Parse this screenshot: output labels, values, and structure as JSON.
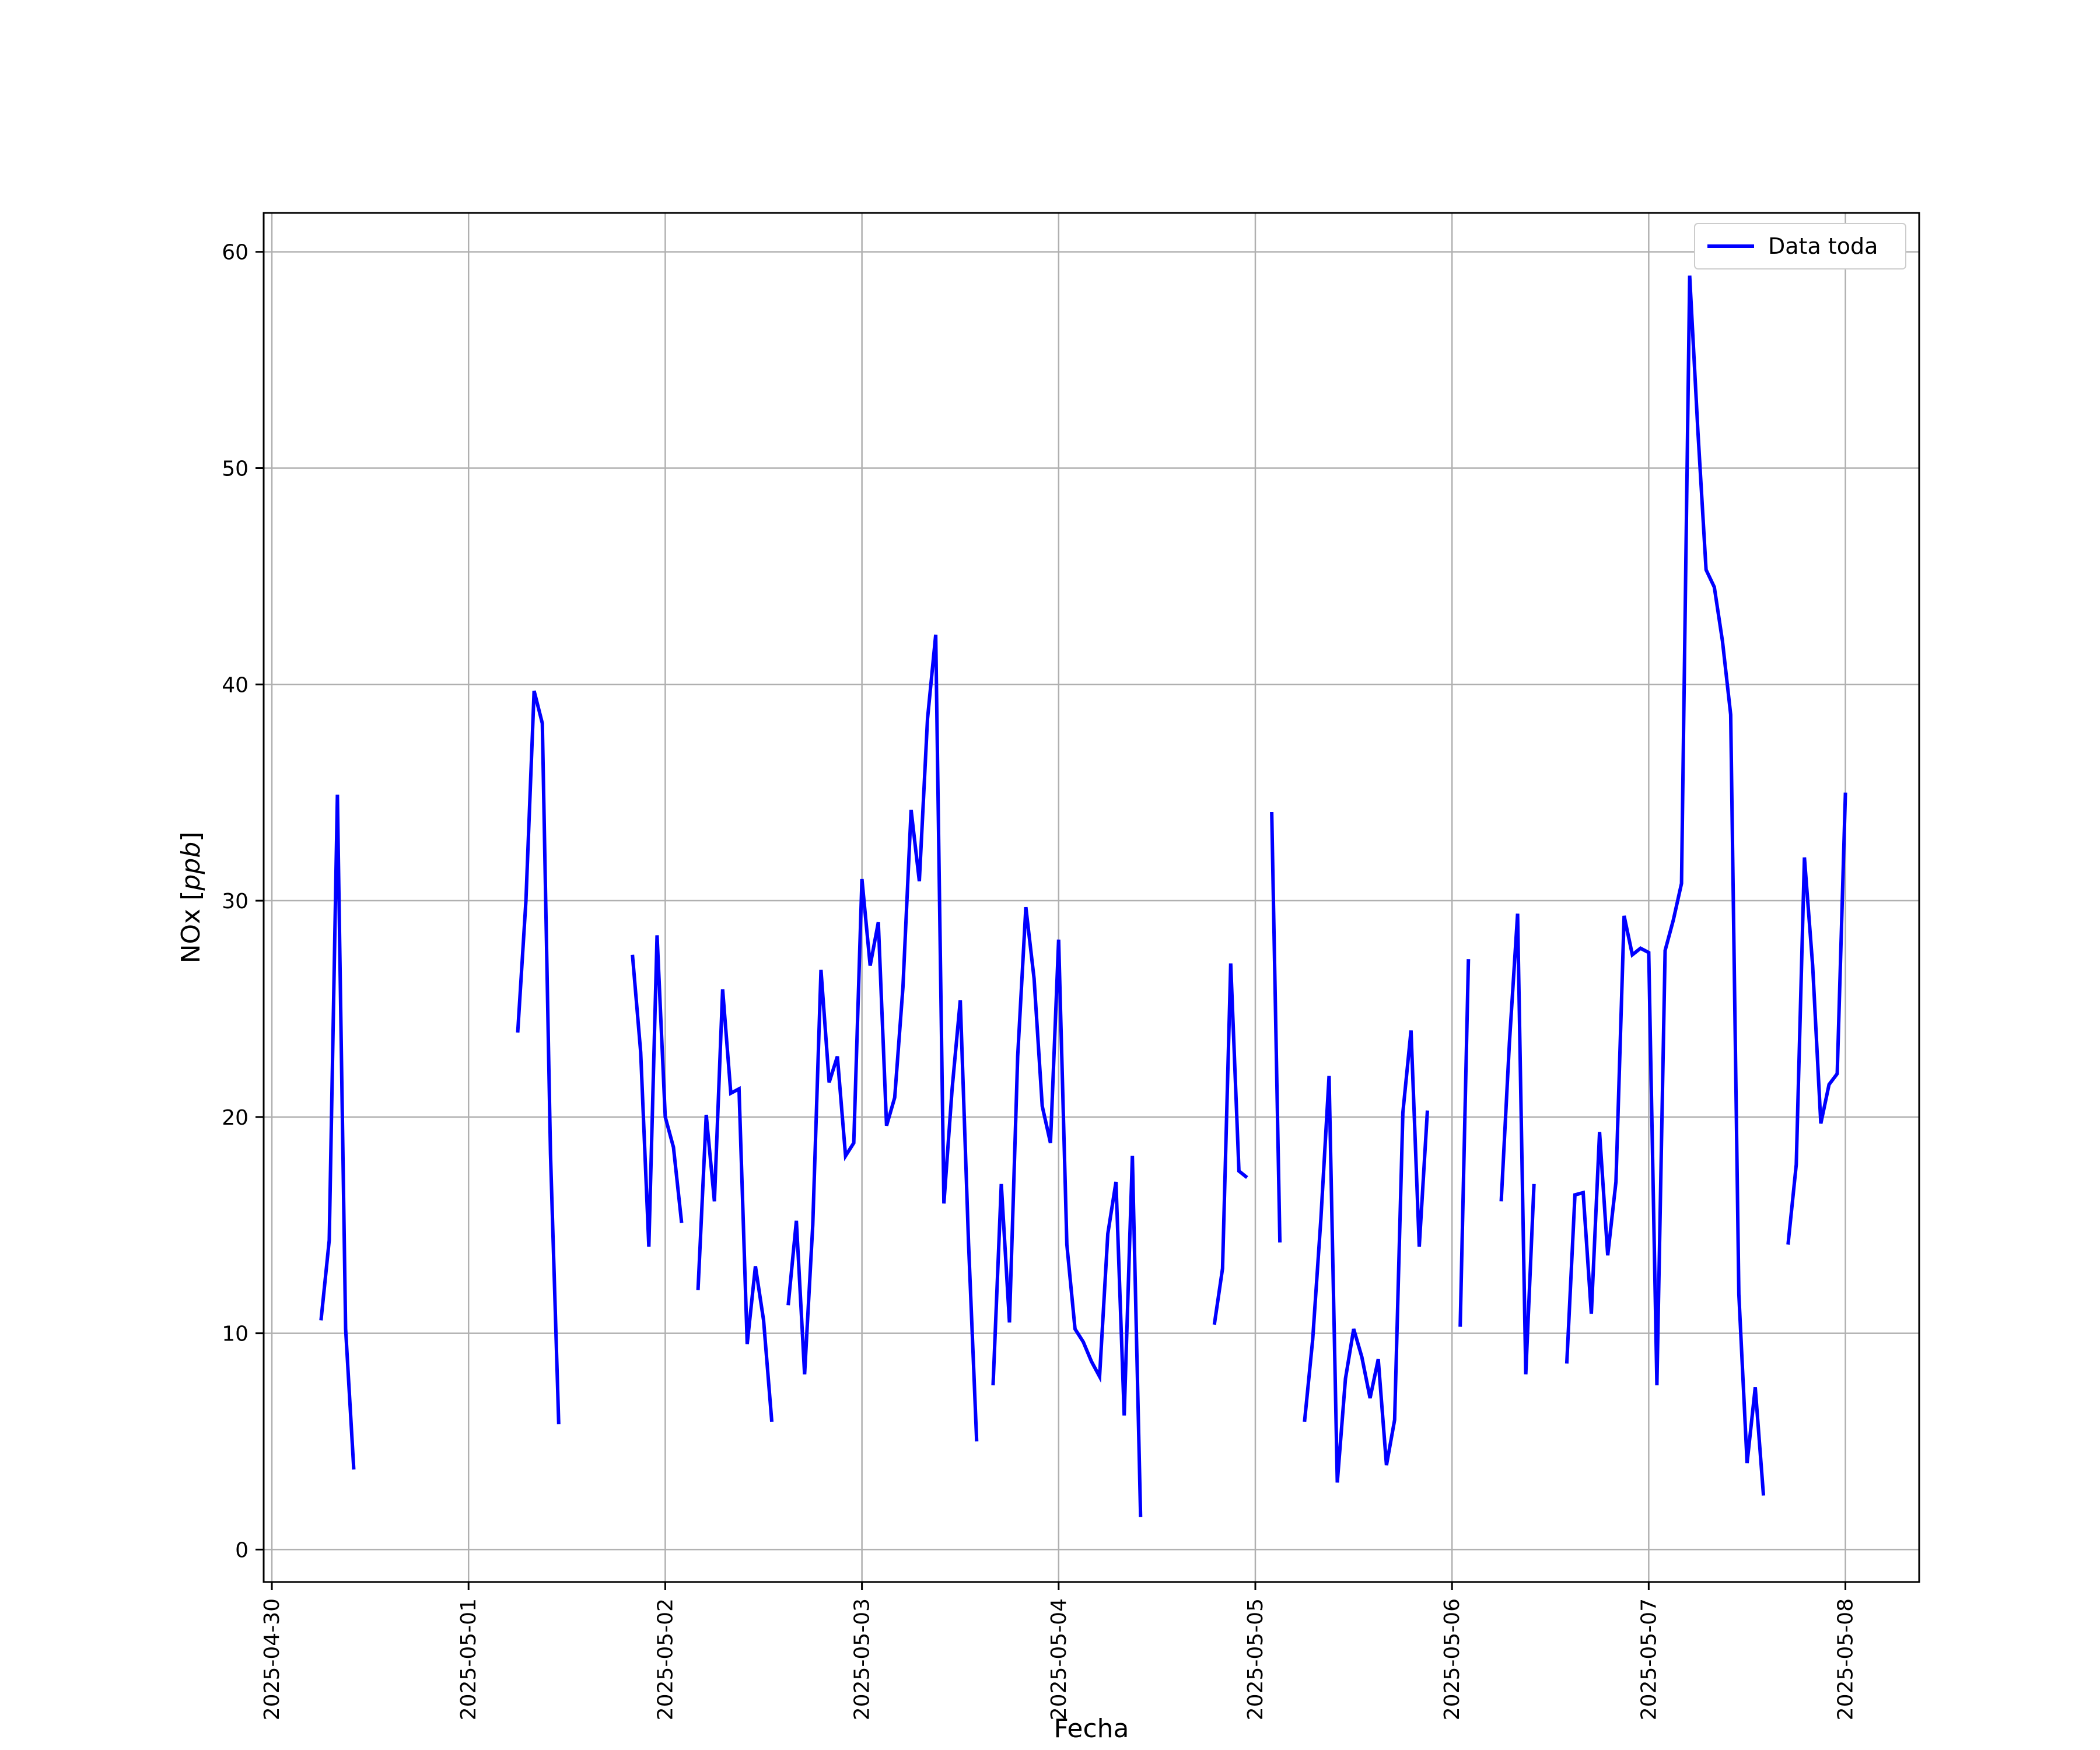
{
  "chart_data": {
    "type": "line",
    "xlabel": "Fecha",
    "ylabel": "NOx [ppb]",
    "xlim": [
      "2025-04-29T23:00",
      "2025-05-08T09:00"
    ],
    "ylim": [
      -1.5,
      61.8
    ],
    "xticks": [
      "2025-04-30",
      "2025-05-01",
      "2025-05-02",
      "2025-05-03",
      "2025-05-04",
      "2025-05-05",
      "2025-05-06",
      "2025-05-07",
      "2025-05-08"
    ],
    "yticks": [
      0,
      10,
      20,
      30,
      40,
      50,
      60
    ],
    "grid": true,
    "legend_position": "top-right",
    "colors": {
      "series": "#0000ff",
      "grid": "#b0b0b0",
      "axes": "#000000"
    },
    "series": [
      {
        "name": "Data toda",
        "segments": [
          [
            [
              "2025-04-30T06:00",
              10.6
            ],
            [
              "2025-04-30T07:00",
              14.3
            ],
            [
              "2025-04-30T08:00",
              34.9
            ],
            [
              "2025-04-30T09:00",
              10.2
            ],
            [
              "2025-04-30T10:00",
              3.7
            ]
          ],
          [
            [
              "2025-05-01T06:00",
              23.9
            ],
            [
              "2025-05-01T07:00",
              30.0
            ],
            [
              "2025-05-01T08:00",
              39.7
            ],
            [
              "2025-05-01T09:00",
              38.2
            ],
            [
              "2025-05-01T10:00",
              18.3
            ],
            [
              "2025-05-01T11:00",
              5.8
            ]
          ],
          [
            [
              "2025-05-01T20:00",
              27.5
            ],
            [
              "2025-05-01T21:00",
              23.0
            ],
            [
              "2025-05-01T22:00",
              14.0
            ],
            [
              "2025-05-01T23:00",
              28.4
            ],
            [
              "2025-05-02T00:00",
              20.0
            ],
            [
              "2025-05-02T01:00",
              18.6
            ],
            [
              "2025-05-02T02:00",
              15.1
            ]
          ],
          [
            [
              "2025-05-02T04:00",
              12.0
            ],
            [
              "2025-05-02T05:00",
              20.1
            ],
            [
              "2025-05-02T06:00",
              16.1
            ],
            [
              "2025-05-02T07:00",
              25.9
            ],
            [
              "2025-05-02T08:00",
              21.1
            ],
            [
              "2025-05-02T09:00",
              21.3
            ],
            [
              "2025-05-02T10:00",
              9.5
            ],
            [
              "2025-05-02T11:00",
              13.1
            ],
            [
              "2025-05-02T12:00",
              10.6
            ],
            [
              "2025-05-02T13:00",
              5.9
            ]
          ],
          [
            [
              "2025-05-02T15:00",
              11.3
            ],
            [
              "2025-05-02T16:00",
              15.2
            ],
            [
              "2025-05-02T17:00",
              8.1
            ],
            [
              "2025-05-02T18:00",
              15.0
            ],
            [
              "2025-05-02T19:00",
              26.8
            ],
            [
              "2025-05-02T20:00",
              21.6
            ],
            [
              "2025-05-02T21:00",
              22.8
            ],
            [
              "2025-05-02T22:00",
              18.2
            ],
            [
              "2025-05-02T23:00",
              18.8
            ],
            [
              "2025-05-03T00:00",
              31.0
            ],
            [
              "2025-05-03T01:00",
              27.0
            ],
            [
              "2025-05-03T02:00",
              29.0
            ],
            [
              "2025-05-03T03:00",
              19.6
            ],
            [
              "2025-05-03T04:00",
              20.9
            ],
            [
              "2025-05-03T05:00",
              26.0
            ],
            [
              "2025-05-03T06:00",
              34.2
            ],
            [
              "2025-05-03T07:00",
              30.9
            ],
            [
              "2025-05-03T08:00",
              38.4
            ],
            [
              "2025-05-03T09:00",
              42.3
            ],
            [
              "2025-05-03T10:00",
              16.0
            ],
            [
              "2025-05-03T11:00",
              21.3
            ],
            [
              "2025-05-03T12:00",
              25.4
            ],
            [
              "2025-05-03T13:00",
              14.2
            ],
            [
              "2025-05-03T14:00",
              5.0
            ]
          ],
          [
            [
              "2025-05-03T16:00",
              7.6
            ],
            [
              "2025-05-03T17:00",
              16.9
            ],
            [
              "2025-05-03T18:00",
              10.5
            ],
            [
              "2025-05-03T19:00",
              22.8
            ],
            [
              "2025-05-03T20:00",
              29.7
            ],
            [
              "2025-05-03T21:00",
              26.4
            ],
            [
              "2025-05-03T22:00",
              20.5
            ],
            [
              "2025-05-03T23:00",
              18.8
            ],
            [
              "2025-05-04T00:00",
              28.2
            ],
            [
              "2025-05-04T01:00",
              14.1
            ],
            [
              "2025-05-04T02:00",
              10.2
            ],
            [
              "2025-05-04T03:00",
              9.6
            ],
            [
              "2025-05-04T04:00",
              8.7
            ],
            [
              "2025-05-04T05:00",
              8.0
            ],
            [
              "2025-05-04T06:00",
              14.6
            ],
            [
              "2025-05-04T07:00",
              17.0
            ],
            [
              "2025-05-04T08:00",
              6.2
            ],
            [
              "2025-05-04T09:00",
              18.2
            ],
            [
              "2025-05-04T10:00",
              1.5
            ]
          ],
          [
            [
              "2025-05-04T19:00",
              10.4
            ],
            [
              "2025-05-04T20:00",
              13.0
            ],
            [
              "2025-05-04T21:00",
              27.1
            ],
            [
              "2025-05-04T22:00",
              17.5
            ],
            [
              "2025-05-04T23:00",
              17.2
            ]
          ],
          [
            [
              "2025-05-05T02:00",
              34.1
            ],
            [
              "2025-05-05T03:00",
              14.2
            ]
          ],
          [
            [
              "2025-05-05T06:00",
              5.9
            ],
            [
              "2025-05-05T07:00",
              9.7
            ],
            [
              "2025-05-05T08:00",
              15.3
            ],
            [
              "2025-05-05T09:00",
              21.9
            ],
            [
              "2025-05-05T10:00",
              3.1
            ],
            [
              "2025-05-05T11:00",
              7.9
            ],
            [
              "2025-05-05T12:00",
              10.2
            ],
            [
              "2025-05-05T13:00",
              8.9
            ],
            [
              "2025-05-05T14:00",
              7.0
            ],
            [
              "2025-05-05T15:00",
              8.8
            ],
            [
              "2025-05-05T16:00",
              3.9
            ],
            [
              "2025-05-05T17:00",
              6.0
            ],
            [
              "2025-05-05T18:00",
              20.2
            ],
            [
              "2025-05-05T19:00",
              24.0
            ],
            [
              "2025-05-05T20:00",
              14.0
            ],
            [
              "2025-05-05T21:00",
              20.3
            ]
          ],
          [
            [
              "2025-05-06T01:00",
              10.3
            ],
            [
              "2025-05-06T02:00",
              27.3
            ]
          ],
          [
            [
              "2025-05-06T06:00",
              16.1
            ],
            [
              "2025-05-06T07:00",
              23.4
            ],
            [
              "2025-05-06T08:00",
              29.4
            ],
            [
              "2025-05-06T09:00",
              8.1
            ],
            [
              "2025-05-06T10:00",
              16.9
            ]
          ],
          [
            [
              "2025-05-06T14:00",
              8.6
            ],
            [
              "2025-05-06T15:00",
              16.4
            ],
            [
              "2025-05-06T16:00",
              16.5
            ],
            [
              "2025-05-06T17:00",
              10.9
            ],
            [
              "2025-05-06T18:00",
              19.3
            ],
            [
              "2025-05-06T19:00",
              13.6
            ],
            [
              "2025-05-06T20:00",
              17.0
            ],
            [
              "2025-05-06T21:00",
              29.3
            ],
            [
              "2025-05-06T22:00",
              27.5
            ],
            [
              "2025-05-06T23:00",
              27.8
            ],
            [
              "2025-05-07T00:00",
              27.6
            ],
            [
              "2025-05-07T01:00",
              7.6
            ],
            [
              "2025-05-07T02:00",
              27.7
            ],
            [
              "2025-05-07T03:00",
              29.1
            ],
            [
              "2025-05-07T04:00",
              30.8
            ],
            [
              "2025-05-07T05:00",
              58.9
            ],
            [
              "2025-05-07T06:00",
              51.7
            ],
            [
              "2025-05-07T07:00",
              45.3
            ],
            [
              "2025-05-07T08:00",
              44.5
            ],
            [
              "2025-05-07T09:00",
              42.0
            ],
            [
              "2025-05-07T10:00",
              38.6
            ],
            [
              "2025-05-07T11:00",
              11.8
            ],
            [
              "2025-05-07T12:00",
              4.0
            ],
            [
              "2025-05-07T13:00",
              7.5
            ],
            [
              "2025-05-07T14:00",
              2.5
            ]
          ],
          [
            [
              "2025-05-07T17:00",
              14.1
            ],
            [
              "2025-05-07T18:00",
              17.8
            ],
            [
              "2025-05-07T19:00",
              32.0
            ],
            [
              "2025-05-07T20:00",
              27.0
            ],
            [
              "2025-05-07T21:00",
              19.7
            ],
            [
              "2025-05-07T22:00",
              21.5
            ],
            [
              "2025-05-07T23:00",
              22.0
            ],
            [
              "2025-05-08T00:00",
              35.0
            ]
          ]
        ]
      }
    ]
  }
}
